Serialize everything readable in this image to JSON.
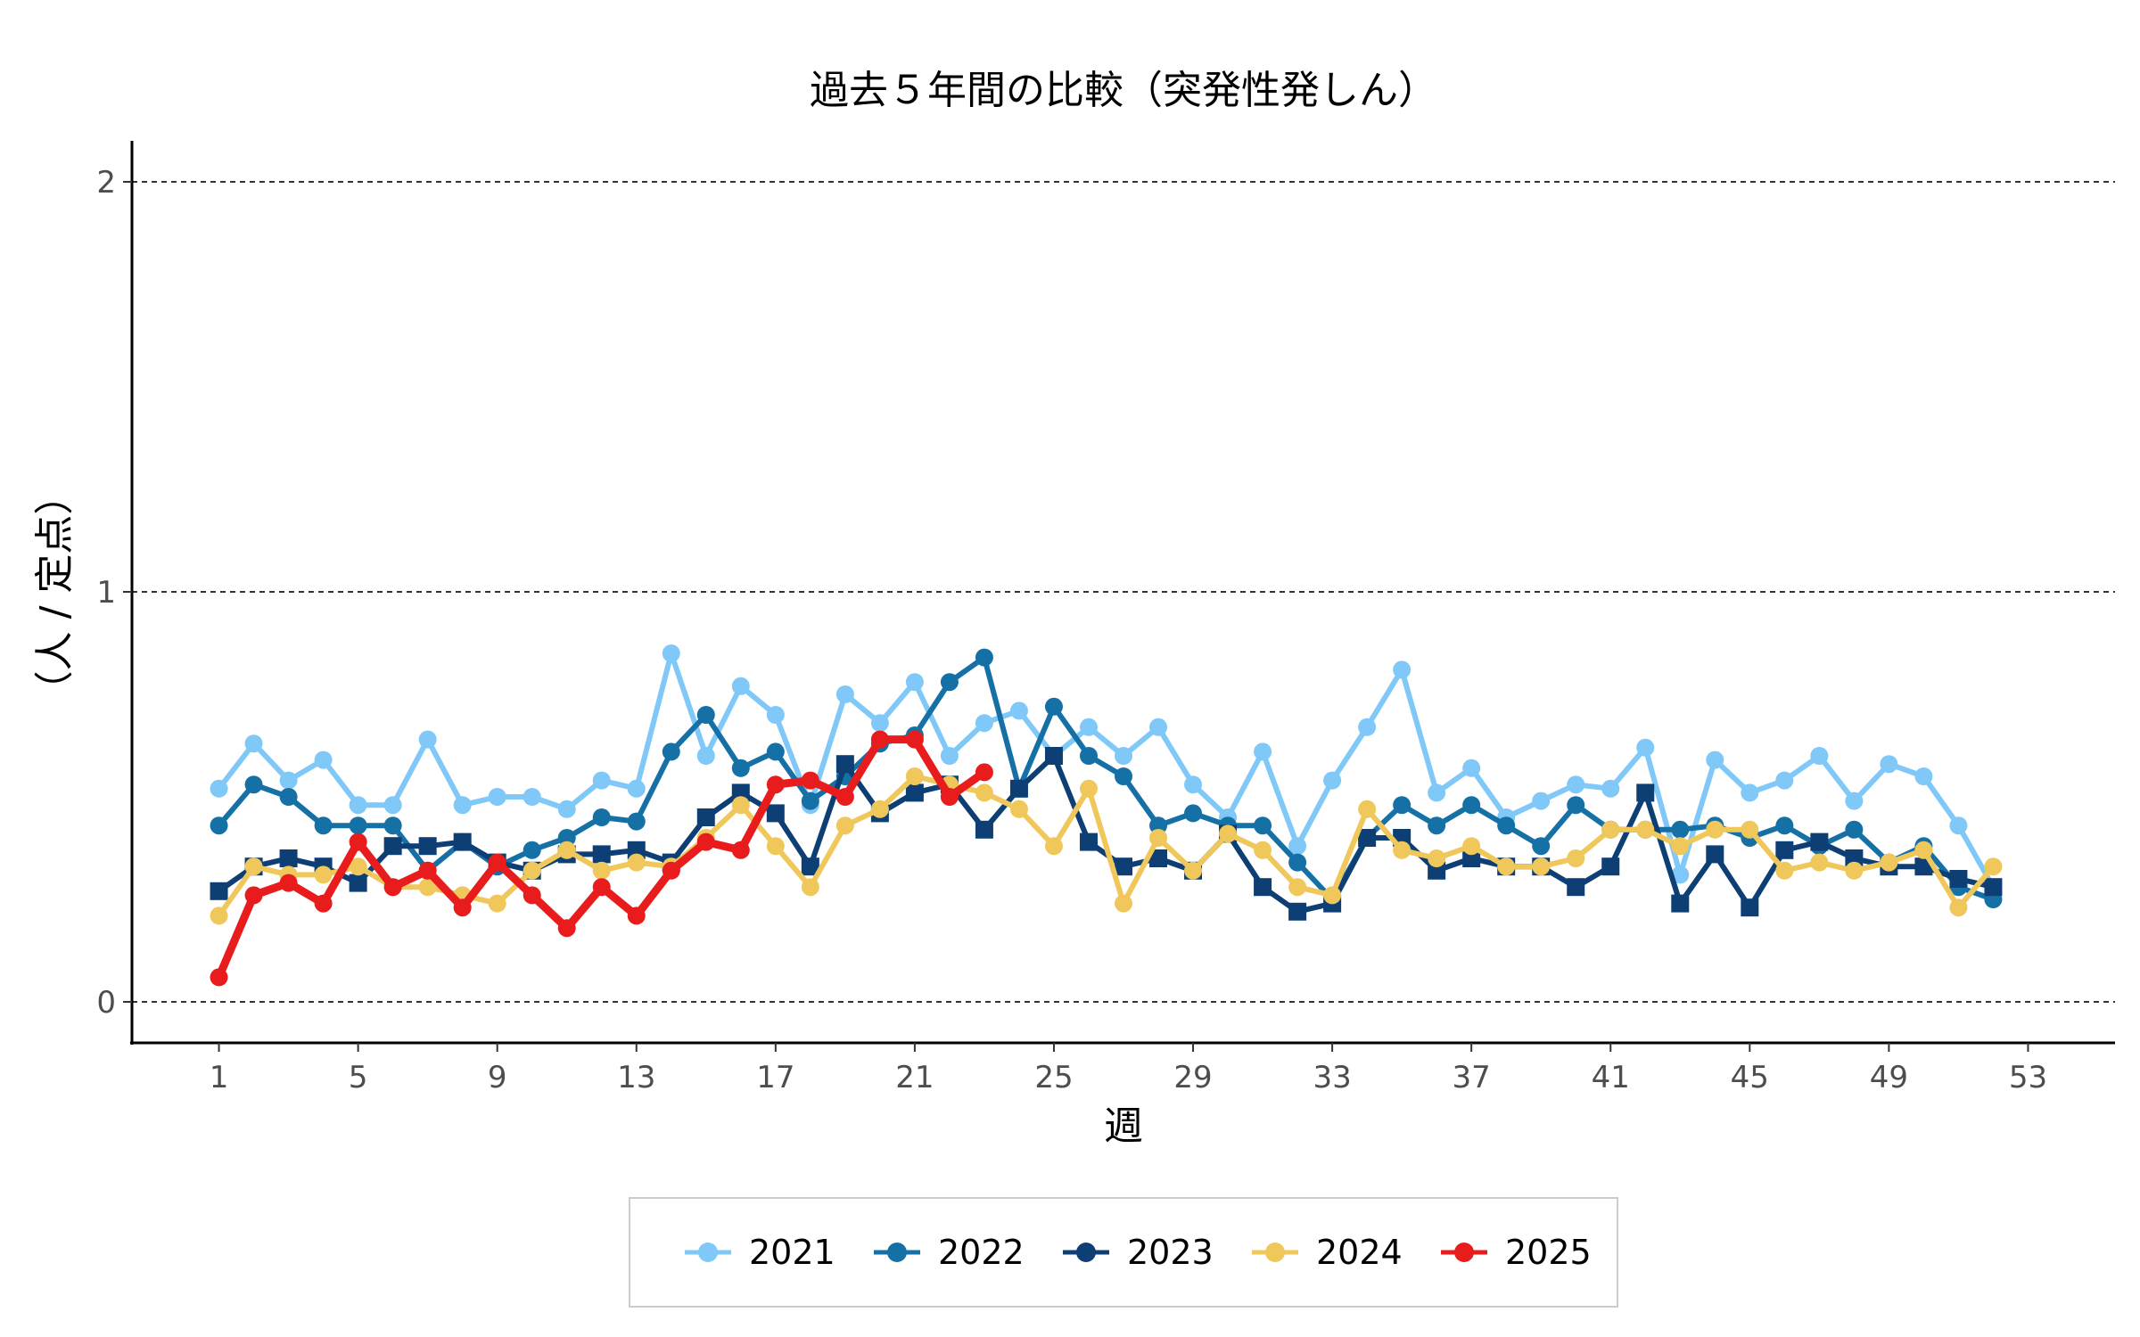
{
  "chart_data": {
    "type": "line",
    "title": "過去５年間の比較（突発性発しん）",
    "xlabel": "週",
    "ylabel": "（人 / 定点）",
    "xlim": [
      -1.5,
      55.5
    ],
    "ylim": [
      -0.1,
      2.1
    ],
    "x_ticks": [
      1,
      5,
      9,
      13,
      17,
      21,
      25,
      29,
      33,
      37,
      41,
      45,
      49,
      53
    ],
    "y_ticks": [
      0,
      1,
      2
    ],
    "grid": "horizontal dashed",
    "legend_position": "bottom",
    "series": [
      {
        "name": "2021",
        "color": "#7fc8f8",
        "marker": "circle",
        "x": [
          1,
          2,
          3,
          4,
          5,
          6,
          7,
          8,
          9,
          10,
          11,
          12,
          13,
          14,
          15,
          16,
          17,
          18,
          19,
          20,
          21,
          22,
          23,
          24,
          25,
          26,
          27,
          28,
          29,
          30,
          31,
          32,
          33,
          34,
          35,
          36,
          37,
          38,
          39,
          40,
          41,
          42,
          43,
          44,
          45,
          46,
          47,
          48,
          49,
          50,
          51,
          52
        ],
        "values": [
          0.52,
          0.63,
          0.54,
          0.59,
          0.48,
          0.48,
          0.64,
          0.48,
          0.5,
          0.5,
          0.47,
          0.54,
          0.52,
          0.85,
          0.6,
          0.77,
          0.7,
          0.48,
          0.75,
          0.68,
          0.78,
          0.6,
          0.68,
          0.71,
          0.6,
          0.67,
          0.6,
          0.67,
          0.53,
          0.45,
          0.61,
          0.38,
          0.54,
          0.67,
          0.81,
          0.51,
          0.57,
          0.45,
          0.49,
          0.53,
          0.52,
          0.62,
          0.31,
          0.59,
          0.51,
          0.54,
          0.6,
          0.49,
          0.58,
          0.55,
          0.43,
          0.28
        ]
      },
      {
        "name": "2022",
        "color": "#1570a6",
        "marker": "circle",
        "x": [
          1,
          2,
          3,
          4,
          5,
          6,
          7,
          8,
          9,
          10,
          11,
          12,
          13,
          14,
          15,
          16,
          17,
          18,
          19,
          20,
          21,
          22,
          23,
          24,
          25,
          26,
          27,
          28,
          29,
          30,
          31,
          32,
          33,
          34,
          35,
          36,
          37,
          38,
          39,
          40,
          41,
          42,
          43,
          44,
          45,
          46,
          47,
          48,
          49,
          50,
          51,
          52
        ],
        "values": [
          0.43,
          0.53,
          0.5,
          0.43,
          0.43,
          0.43,
          0.32,
          0.39,
          0.33,
          0.37,
          0.4,
          0.45,
          0.44,
          0.61,
          0.7,
          0.57,
          0.61,
          0.49,
          0.55,
          0.63,
          0.65,
          0.78,
          0.84,
          0.52,
          0.72,
          0.6,
          0.55,
          0.43,
          0.46,
          0.43,
          0.43,
          0.34,
          0.25,
          0.4,
          0.48,
          0.43,
          0.48,
          0.43,
          0.38,
          0.48,
          0.42,
          0.42,
          0.42,
          0.43,
          0.4,
          0.43,
          0.38,
          0.42,
          0.34,
          0.38,
          0.28,
          0.25
        ]
      },
      {
        "name": "2023",
        "color": "#0d3f75",
        "marker": "square",
        "x": [
          1,
          2,
          3,
          4,
          5,
          6,
          7,
          8,
          9,
          10,
          11,
          12,
          13,
          14,
          15,
          16,
          17,
          18,
          19,
          20,
          21,
          22,
          23,
          24,
          25,
          26,
          27,
          28,
          29,
          30,
          31,
          32,
          33,
          34,
          35,
          36,
          37,
          38,
          39,
          40,
          41,
          42,
          43,
          44,
          45,
          46,
          47,
          48,
          49,
          50,
          51,
          52
        ],
        "values": [
          0.27,
          0.33,
          0.35,
          0.33,
          0.29,
          0.38,
          0.38,
          0.39,
          0.34,
          0.32,
          0.36,
          0.36,
          0.37,
          0.34,
          0.45,
          0.51,
          0.46,
          0.33,
          0.58,
          0.46,
          0.51,
          0.53,
          0.42,
          0.52,
          0.6,
          0.39,
          0.33,
          0.35,
          0.32,
          0.41,
          0.28,
          0.22,
          0.24,
          0.4,
          0.4,
          0.32,
          0.35,
          0.33,
          0.33,
          0.28,
          0.33,
          0.51,
          0.24,
          0.36,
          0.23,
          0.37,
          0.39,
          0.35,
          0.33,
          0.33,
          0.3,
          0.28
        ]
      },
      {
        "name": "2024",
        "color": "#f0c75a",
        "marker": "circle",
        "x": [
          1,
          2,
          3,
          4,
          5,
          6,
          7,
          8,
          9,
          10,
          11,
          12,
          13,
          14,
          15,
          16,
          17,
          18,
          19,
          20,
          21,
          22,
          23,
          24,
          25,
          26,
          27,
          28,
          29,
          30,
          31,
          32,
          33,
          34,
          35,
          36,
          37,
          38,
          39,
          40,
          41,
          42,
          43,
          44,
          45,
          46,
          47,
          48,
          49,
          50,
          51,
          52
        ],
        "values": [
          0.21,
          0.33,
          0.31,
          0.31,
          0.33,
          0.28,
          0.28,
          0.26,
          0.24,
          0.32,
          0.37,
          0.32,
          0.34,
          0.33,
          0.4,
          0.48,
          0.38,
          0.28,
          0.43,
          0.47,
          0.55,
          0.53,
          0.51,
          0.47,
          0.38,
          0.52,
          0.24,
          0.4,
          0.32,
          0.41,
          0.37,
          0.28,
          0.26,
          0.47,
          0.37,
          0.35,
          0.38,
          0.33,
          0.33,
          0.35,
          0.42,
          0.42,
          0.38,
          0.42,
          0.42,
          0.32,
          0.34,
          0.32,
          0.34,
          0.37,
          0.23,
          0.33
        ]
      },
      {
        "name": "2025",
        "color": "#e81c1c",
        "marker": "circle",
        "x": [
          1,
          2,
          3,
          4,
          5,
          6,
          7,
          8,
          9,
          10,
          11,
          12,
          13,
          14,
          15,
          16,
          17,
          18,
          19,
          20,
          21,
          22,
          23
        ],
        "values": [
          0.06,
          0.26,
          0.29,
          0.24,
          0.39,
          0.28,
          0.32,
          0.23,
          0.34,
          0.26,
          0.18,
          0.28,
          0.21,
          0.32,
          0.39,
          0.37,
          0.53,
          0.54,
          0.5,
          0.64,
          0.64,
          0.5,
          0.56
        ]
      }
    ]
  }
}
